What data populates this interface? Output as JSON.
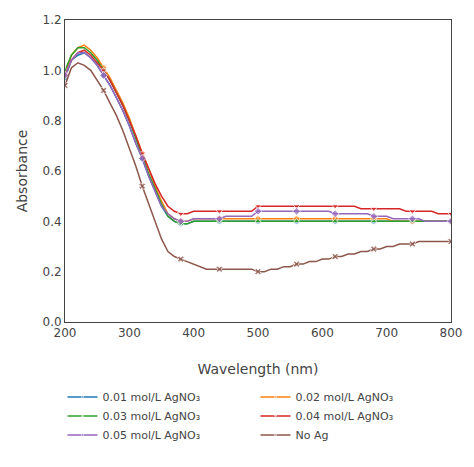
{
  "chart_data": {
    "type": "line",
    "xlabel": "Wavelength (nm)",
    "ylabel": "Absorbance",
    "xlim": [
      200,
      800
    ],
    "ylim": [
      0.0,
      1.2
    ],
    "xticks": [
      200,
      300,
      400,
      500,
      600,
      700,
      800
    ],
    "yticks": [
      {
        "value": 0.0,
        "label": "0.0"
      },
      0.2,
      0.4,
      0.6,
      0.8,
      {
        "value": 1.0,
        "label": "1.0"
      },
      1.2
    ],
    "grid": false,
    "legend": "bottom",
    "x": [
      200,
      210,
      220,
      230,
      240,
      250,
      260,
      270,
      280,
      290,
      300,
      310,
      320,
      330,
      340,
      350,
      360,
      370,
      380,
      390,
      400,
      410,
      420,
      430,
      440,
      450,
      460,
      470,
      480,
      490,
      500,
      510,
      520,
      530,
      540,
      550,
      560,
      570,
      580,
      590,
      600,
      610,
      620,
      630,
      640,
      650,
      660,
      670,
      680,
      690,
      700,
      710,
      720,
      730,
      740,
      750,
      760,
      770,
      780,
      790,
      800
    ],
    "series": [
      {
        "name": "0.01 mol/L AgNO₃",
        "marker": "circle",
        "values": [
          0.97,
          1.04,
          1.06,
          1.07,
          1.05,
          1.02,
          0.98,
          0.94,
          0.89,
          0.84,
          0.78,
          0.71,
          0.65,
          0.58,
          0.52,
          0.46,
          0.42,
          0.4,
          0.39,
          0.39,
          0.4,
          0.4,
          0.4,
          0.4,
          0.4,
          0.4,
          0.4,
          0.4,
          0.4,
          0.4,
          0.4,
          0.4,
          0.4,
          0.4,
          0.4,
          0.4,
          0.4,
          0.4,
          0.4,
          0.4,
          0.4,
          0.4,
          0.4,
          0.4,
          0.4,
          0.4,
          0.4,
          0.4,
          0.4,
          0.4,
          0.4,
          0.4,
          0.4,
          0.4,
          0.4,
          0.4,
          0.4,
          0.4,
          0.4,
          0.4,
          0.4
        ]
      },
      {
        "name": "0.02 mol/L AgNO₃",
        "marker": "circle",
        "values": [
          0.99,
          1.06,
          1.09,
          1.1,
          1.08,
          1.05,
          1.01,
          0.97,
          0.92,
          0.87,
          0.81,
          0.74,
          0.67,
          0.61,
          0.54,
          0.48,
          0.43,
          0.41,
          0.4,
          0.4,
          0.41,
          0.41,
          0.41,
          0.41,
          0.41,
          0.41,
          0.41,
          0.41,
          0.41,
          0.41,
          0.41,
          0.41,
          0.41,
          0.41,
          0.41,
          0.41,
          0.41,
          0.41,
          0.41,
          0.41,
          0.41,
          0.41,
          0.41,
          0.41,
          0.41,
          0.41,
          0.41,
          0.41,
          0.41,
          0.41,
          0.41,
          0.4,
          0.4,
          0.4,
          0.4,
          0.4,
          0.4,
          0.4,
          0.4,
          0.4,
          0.4
        ]
      },
      {
        "name": "0.03 mol/L AgNO₃",
        "marker": "triangle-up",
        "values": [
          1.0,
          1.06,
          1.09,
          1.09,
          1.07,
          1.04,
          1.0,
          0.96,
          0.91,
          0.86,
          0.8,
          0.73,
          0.66,
          0.59,
          0.53,
          0.47,
          0.42,
          0.4,
          0.39,
          0.39,
          0.4,
          0.4,
          0.4,
          0.4,
          0.4,
          0.4,
          0.4,
          0.4,
          0.4,
          0.4,
          0.4,
          0.4,
          0.4,
          0.4,
          0.4,
          0.4,
          0.4,
          0.4,
          0.4,
          0.4,
          0.4,
          0.4,
          0.4,
          0.4,
          0.4,
          0.4,
          0.4,
          0.4,
          0.4,
          0.4,
          0.4,
          0.4,
          0.4,
          0.4,
          0.4,
          0.4,
          0.4,
          0.4,
          0.4,
          0.4,
          0.4
        ]
      },
      {
        "name": "0.04 mol/L AgNO₃",
        "marker": "triangle-down",
        "values": [
          0.98,
          1.04,
          1.07,
          1.08,
          1.06,
          1.03,
          1.0,
          0.96,
          0.91,
          0.86,
          0.8,
          0.74,
          0.67,
          0.61,
          0.55,
          0.5,
          0.46,
          0.44,
          0.43,
          0.43,
          0.44,
          0.44,
          0.44,
          0.44,
          0.44,
          0.44,
          0.44,
          0.44,
          0.44,
          0.44,
          0.46,
          0.46,
          0.46,
          0.46,
          0.46,
          0.46,
          0.46,
          0.46,
          0.46,
          0.46,
          0.46,
          0.46,
          0.46,
          0.46,
          0.46,
          0.46,
          0.45,
          0.45,
          0.45,
          0.45,
          0.45,
          0.45,
          0.45,
          0.44,
          0.44,
          0.44,
          0.44,
          0.44,
          0.43,
          0.43,
          0.43
        ]
      },
      {
        "name": "0.05 mol/L AgNO₃",
        "marker": "diamond",
        "values": [
          0.98,
          1.04,
          1.07,
          1.07,
          1.05,
          1.02,
          0.98,
          0.94,
          0.89,
          0.84,
          0.78,
          0.71,
          0.65,
          0.58,
          0.52,
          0.46,
          0.43,
          0.41,
          0.4,
          0.4,
          0.41,
          0.41,
          0.41,
          0.41,
          0.41,
          0.42,
          0.42,
          0.42,
          0.42,
          0.42,
          0.44,
          0.44,
          0.44,
          0.44,
          0.44,
          0.44,
          0.44,
          0.44,
          0.44,
          0.44,
          0.44,
          0.44,
          0.43,
          0.43,
          0.43,
          0.43,
          0.43,
          0.43,
          0.42,
          0.42,
          0.42,
          0.41,
          0.41,
          0.41,
          0.41,
          0.41,
          0.4,
          0.4,
          0.4,
          0.4,
          0.4
        ]
      },
      {
        "name": "No Ag",
        "marker": "x",
        "values": [
          0.94,
          1.01,
          1.03,
          1.02,
          1.0,
          0.96,
          0.92,
          0.87,
          0.82,
          0.76,
          0.69,
          0.62,
          0.54,
          0.47,
          0.4,
          0.33,
          0.28,
          0.26,
          0.25,
          0.24,
          0.23,
          0.22,
          0.21,
          0.21,
          0.21,
          0.21,
          0.21,
          0.21,
          0.21,
          0.21,
          0.2,
          0.2,
          0.21,
          0.21,
          0.22,
          0.22,
          0.23,
          0.23,
          0.24,
          0.24,
          0.25,
          0.25,
          0.26,
          0.26,
          0.27,
          0.27,
          0.28,
          0.28,
          0.29,
          0.29,
          0.3,
          0.3,
          0.31,
          0.31,
          0.31,
          0.32,
          0.32,
          0.32,
          0.32,
          0.32,
          0.32
        ]
      }
    ]
  }
}
